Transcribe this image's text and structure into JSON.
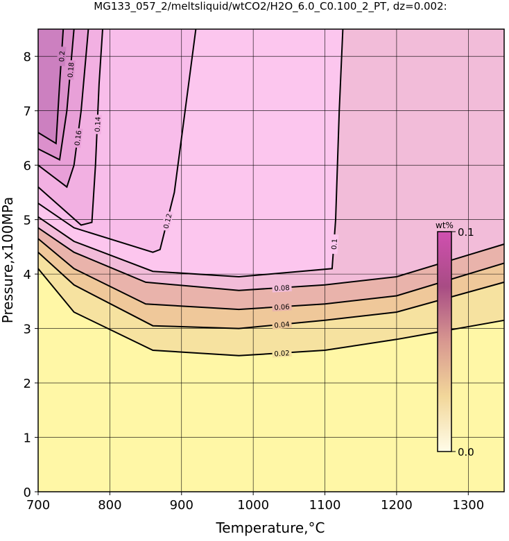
{
  "chart_data": {
    "type": "contour",
    "title": "MG133_057_2/meltsliquid/wtCO2/H2O_6.0_C0.100_2_PT, dz=0.002:",
    "xlabel": "Temperature,°C",
    "ylabel": "Pressure,x100MPa",
    "xlim": [
      700,
      1350
    ],
    "ylim": [
      0,
      8.5
    ],
    "xticks": [
      700,
      800,
      900,
      1000,
      1100,
      1200,
      1300
    ],
    "yticks": [
      0,
      1,
      2,
      3,
      4,
      5,
      6,
      7,
      8
    ],
    "grid": true,
    "background": "#fff7a6",
    "contours": [
      {
        "level": 0.02,
        "fill": "#f6e2a0",
        "x": [
          700,
          750,
          860,
          980,
          1100,
          1200,
          1350
        ],
        "y": [
          4.1,
          3.3,
          2.6,
          2.5,
          2.6,
          2.8,
          3.15
        ]
      },
      {
        "level": 0.04,
        "fill": "#efc89a",
        "x": [
          700,
          750,
          860,
          980,
          1100,
          1200,
          1350
        ],
        "y": [
          4.4,
          3.8,
          3.05,
          3.0,
          3.15,
          3.3,
          3.85
        ]
      },
      {
        "level": 0.06,
        "fill": "#e9b3ab",
        "x": [
          700,
          750,
          850,
          980,
          1100,
          1200,
          1350
        ],
        "y": [
          4.65,
          4.1,
          3.45,
          3.35,
          3.45,
          3.6,
          4.2
        ]
      },
      {
        "level": 0.08,
        "fill": "#f2bcd9",
        "x": [
          700,
          750,
          850,
          980,
          1100,
          1200,
          1350
        ],
        "y": [
          4.85,
          4.4,
          3.85,
          3.7,
          3.8,
          3.95,
          4.55
        ]
      },
      {
        "level": 0.1,
        "fill": "#fcc6ee",
        "x": [
          700,
          750,
          860,
          980,
          1110,
          1115,
          1120,
          1125
        ],
        "y": [
          5.05,
          4.6,
          4.05,
          3.95,
          4.1,
          5.0,
          7.0,
          8.5
        ]
      },
      {
        "level": 0.12,
        "fill": "#f8bdea",
        "x": [
          700,
          750,
          860,
          870,
          890,
          910,
          920
        ],
        "y": [
          5.3,
          4.85,
          4.4,
          4.45,
          5.5,
          7.5,
          8.5
        ]
      },
      {
        "level": 0.14,
        "fill": "#f2b0e2",
        "x": [
          700,
          760,
          775,
          780,
          785,
          790
        ],
        "y": [
          5.6,
          4.9,
          4.95,
          6.0,
          7.5,
          8.5
        ]
      },
      {
        "level": 0.16,
        "fill": "#e8a0d8",
        "x": [
          700,
          740,
          750,
          760,
          770
        ],
        "y": [
          6.0,
          5.6,
          6.0,
          7.0,
          8.5
        ]
      },
      {
        "level": 0.18,
        "fill": "#dc90cc",
        "x": [
          700,
          730,
          740,
          750
        ],
        "y": [
          6.3,
          6.1,
          7.0,
          8.5
        ]
      },
      {
        "level": 0.2,
        "fill": "#cc80c0",
        "x": [
          700,
          725,
          730,
          735
        ],
        "y": [
          6.6,
          6.4,
          7.5,
          8.5
        ]
      }
    ],
    "colorbar": {
      "label": "wt%",
      "lim": [
        0,
        0.1
      ],
      "ticks": [
        {
          "value": 0,
          "label": "0.0"
        },
        0.1
      ],
      "colors": [
        "#fffce8",
        "#f2d79a",
        "#d89890",
        "#a84c84",
        "#d050b0"
      ]
    }
  }
}
